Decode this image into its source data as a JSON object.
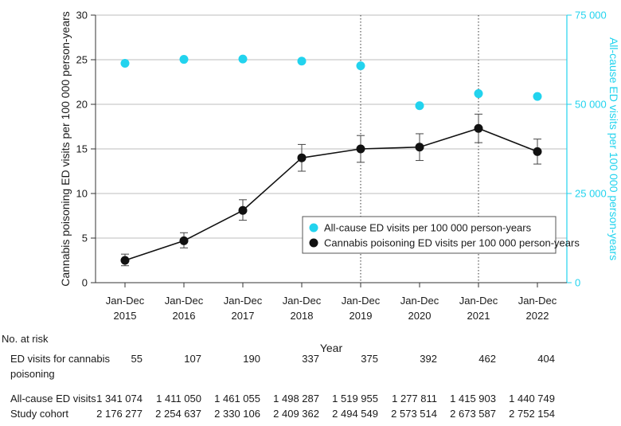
{
  "chart_data": {
    "type": "line",
    "categories": [
      [
        "Jan-Dec",
        "2015"
      ],
      [
        "Jan-Dec",
        "2016"
      ],
      [
        "Jan-Dec",
        "2017"
      ],
      [
        "Jan-Dec",
        "2018"
      ],
      [
        "Jan-Dec",
        "2019"
      ],
      [
        "Jan-Dec",
        "2020"
      ],
      [
        "Jan-Dec",
        "2021"
      ],
      [
        "Jan-Dec",
        "2022"
      ]
    ],
    "xlabel": "Year",
    "ylabel": "Cannabis poisoning ED visits per 100 000 person-years",
    "y2label": "All-cause ED visits per 100 000 person-years",
    "ylim": [
      0,
      30
    ],
    "y2lim": [
      0,
      75000
    ],
    "yticks": [
      "0",
      "5",
      "10",
      "15",
      "20",
      "25",
      "30"
    ],
    "y2ticks": [
      "0",
      "25 000",
      "50 000",
      "75 000"
    ],
    "grid": "horizontal",
    "vertical_markers_at": [
      "2019",
      "2021"
    ],
    "legend_position": "lower-right",
    "series": [
      {
        "name": "All-cause ED visits per 100 000 person-years",
        "axis": "right",
        "style": "points",
        "color": "#22d3ee",
        "values": [
          61500,
          62600,
          62700,
          62100,
          60800,
          49600,
          53000,
          52200
        ]
      },
      {
        "name": "Cannabis poisoning ED visits per 100 000 person-years",
        "axis": "left",
        "style": "line-with-points",
        "color": "#111111",
        "values": [
          2.5,
          4.7,
          8.1,
          14.0,
          15.0,
          15.2,
          17.3,
          14.7
        ],
        "ci_low": [
          1.9,
          3.9,
          7.0,
          12.5,
          13.5,
          13.7,
          15.7,
          13.3
        ],
        "ci_high": [
          3.2,
          5.6,
          9.3,
          15.5,
          16.5,
          16.7,
          18.9,
          16.1
        ]
      }
    ]
  },
  "risk_table": {
    "title": "No. at risk",
    "rows": [
      {
        "label_lines": [
          "ED visits for cannabis",
          "poisoning"
        ],
        "values": [
          "55",
          "107",
          "190",
          "337",
          "375",
          "392",
          "462",
          "404"
        ]
      },
      {
        "label_lines": [
          "All-cause ED visits"
        ],
        "values": [
          "1 341 074",
          "1 411 050",
          "1 461 055",
          "1 498 287",
          "1 519 955",
          "1 277 811",
          "1 415 903",
          "1 440 749"
        ]
      },
      {
        "label_lines": [
          "Study cohort"
        ],
        "values": [
          "2 176 277",
          "2 254 637",
          "2 330 106",
          "2 409 362",
          "2 494 549",
          "2 573 514",
          "2 673 587",
          "2 752 154"
        ]
      }
    ]
  }
}
